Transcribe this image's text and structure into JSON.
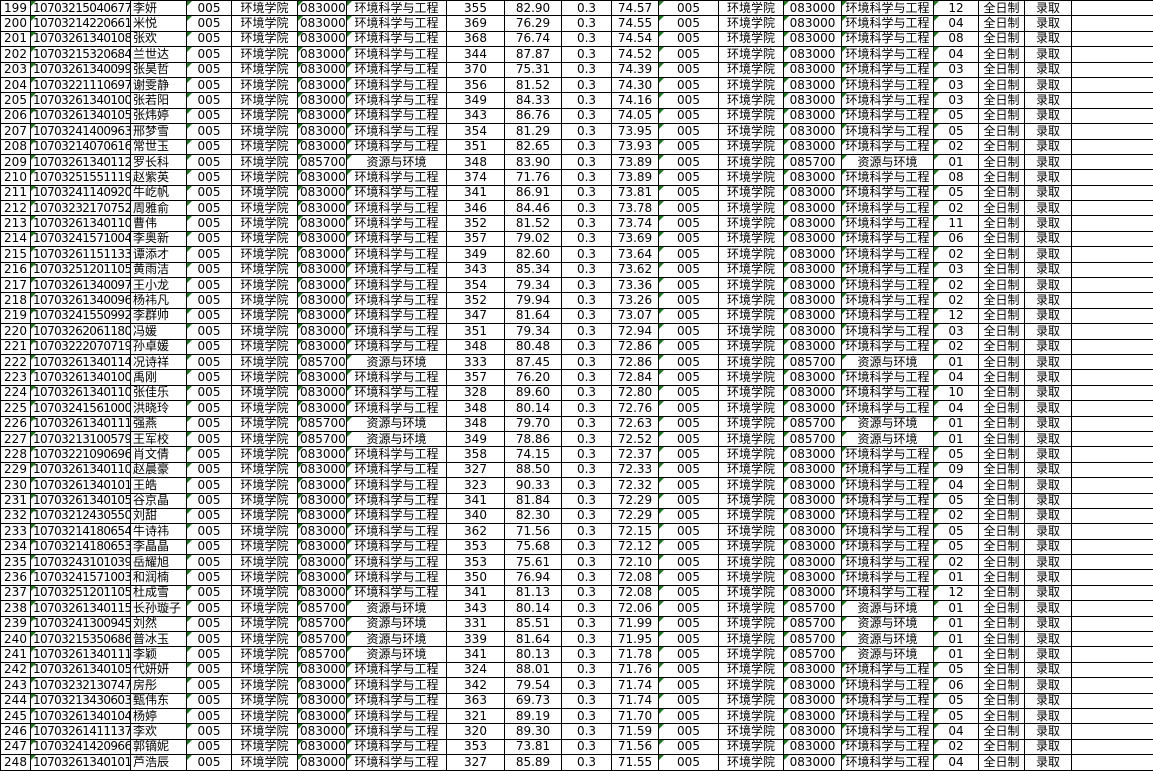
{
  "table": {
    "constants": {
      "unit_code": "005",
      "college": "环境学院",
      "weight": "0.3",
      "study_type": "全日制",
      "status": "录取"
    },
    "majors": {
      "083000": "环境科学与工程",
      "085700": "资源与环境"
    },
    "colors": {
      "grid": "#000000",
      "triangle_indicator": "#1f7a1f",
      "background": "#ffffff",
      "text": "#000000"
    },
    "row_fields": [
      "row_number",
      "candidate_id",
      "name",
      "major_code",
      "initial_score",
      "retest_score",
      "weighted_total",
      "direction_code"
    ],
    "rows": [
      [
        "199",
        "107032150406779",
        "李妍",
        "083000",
        "355",
        "82.90",
        "74.57",
        "12"
      ],
      [
        "200",
        "107032142206611",
        "米悦",
        "083000",
        "369",
        "76.29",
        "74.55",
        "04"
      ],
      [
        "201",
        "107032613401082",
        "张欢",
        "083000",
        "368",
        "76.74",
        "74.54",
        "08"
      ],
      [
        "202",
        "107032153206843",
        "兰世达",
        "083000",
        "344",
        "87.87",
        "74.52",
        "04"
      ],
      [
        "203",
        "107032613400993",
        "张昊哲",
        "083000",
        "370",
        "75.31",
        "74.39",
        "03"
      ],
      [
        "204",
        "107032211106977",
        "谢雯静",
        "083000",
        "356",
        "81.52",
        "74.30",
        "03"
      ],
      [
        "205",
        "107032613401000",
        "张若阳",
        "083000",
        "349",
        "84.33",
        "74.16",
        "03"
      ],
      [
        "206",
        "107032613401052",
        "张炜婷",
        "083000",
        "343",
        "86.76",
        "74.05",
        "05"
      ],
      [
        "207",
        "107032414009638",
        "邢梦雪",
        "083000",
        "354",
        "81.29",
        "73.95",
        "05"
      ],
      [
        "208",
        "107032140706162",
        "常世玉",
        "083000",
        "351",
        "82.65",
        "73.93",
        "02"
      ],
      [
        "209",
        "107032613401123",
        "罗长科",
        "085700",
        "348",
        "83.90",
        "73.89",
        "01"
      ],
      [
        "210",
        "107032515511196",
        "赵紫英",
        "083000",
        "374",
        "71.76",
        "73.89",
        "08"
      ],
      [
        "211",
        "107032411409207",
        "牛屹帆",
        "083000",
        "341",
        "86.91",
        "73.81",
        "05"
      ],
      [
        "212",
        "107032321707529",
        "周雅俞",
        "083000",
        "346",
        "84.46",
        "73.78",
        "02"
      ],
      [
        "213",
        "107032613401105",
        "曹伟",
        "083000",
        "352",
        "81.52",
        "73.74",
        "11"
      ],
      [
        "214",
        "107032415710046",
        "李奥新",
        "083000",
        "357",
        "79.02",
        "73.69",
        "06"
      ],
      [
        "215",
        "107032611511337",
        "谭添才",
        "083000",
        "349",
        "82.60",
        "73.64",
        "02"
      ],
      [
        "216",
        "107032512011056",
        "黄雨洁",
        "083000",
        "343",
        "85.34",
        "73.62",
        "03"
      ],
      [
        "217",
        "107032613400970",
        "王小龙",
        "083000",
        "354",
        "79.34",
        "73.36",
        "02"
      ],
      [
        "218",
        "107032613400963",
        "杨祎凡",
        "083000",
        "352",
        "79.94",
        "73.26",
        "02"
      ],
      [
        "219",
        "107032415509925",
        "李群帅",
        "083000",
        "347",
        "81.64",
        "73.07",
        "12"
      ],
      [
        "220",
        "107032620611805",
        "冯媛",
        "083000",
        "351",
        "79.34",
        "72.94",
        "03"
      ],
      [
        "221",
        "107032220707190",
        "孙卓媛",
        "083000",
        "348",
        "80.48",
        "72.86",
        "02"
      ],
      [
        "222",
        "107032613401142",
        "况诗祥",
        "085700",
        "333",
        "87.45",
        "72.86",
        "01"
      ],
      [
        "223",
        "107032613401005",
        "禹刚",
        "083000",
        "357",
        "76.20",
        "72.84",
        "04"
      ],
      [
        "224",
        "107032613401103",
        "张佳乐",
        "083000",
        "328",
        "89.60",
        "72.80",
        "10"
      ],
      [
        "225",
        "107032415610004",
        "洪晓玲",
        "083000",
        "348",
        "80.14",
        "72.76",
        "04"
      ],
      [
        "226",
        "107032613401117",
        "强燕",
        "085700",
        "348",
        "79.70",
        "72.63",
        "01"
      ],
      [
        "227",
        "107032131005794",
        "王军校",
        "085700",
        "349",
        "78.86",
        "72.52",
        "01"
      ],
      [
        "228",
        "107032210906964",
        "肖文倩",
        "083000",
        "358",
        "74.15",
        "72.37",
        "05"
      ],
      [
        "229",
        "107032613401101",
        "赵晨豪",
        "083000",
        "327",
        "88.50",
        "72.33",
        "09"
      ],
      [
        "230",
        "107032613401019",
        "王皓",
        "083000",
        "323",
        "90.33",
        "72.32",
        "04"
      ],
      [
        "231",
        "107032613401057",
        "谷京晶",
        "083000",
        "341",
        "81.84",
        "72.29",
        "05"
      ],
      [
        "232",
        "107032124305500",
        "刘甜",
        "083000",
        "340",
        "82.30",
        "72.29",
        "02"
      ],
      [
        "233",
        "107032141806541",
        "牛诗祎",
        "083000",
        "362",
        "71.56",
        "72.15",
        "05"
      ],
      [
        "234",
        "107032141806539",
        "李晶晶",
        "083000",
        "353",
        "75.68",
        "72.12",
        "05"
      ],
      [
        "235",
        "107032431010395",
        "岳耀旭",
        "083000",
        "353",
        "75.61",
        "72.10",
        "02"
      ],
      [
        "236",
        "107032415710036",
        "和润楠",
        "083000",
        "350",
        "76.94",
        "72.08",
        "01"
      ],
      [
        "237",
        "107032512011059",
        "杜成雪",
        "083000",
        "341",
        "81.13",
        "72.08",
        "12"
      ],
      [
        "238",
        "107032613401153",
        "长孙璇子",
        "085700",
        "343",
        "80.14",
        "72.06",
        "01"
      ],
      [
        "239",
        "107032413009452",
        "刘然",
        "085700",
        "331",
        "85.51",
        "71.99",
        "01"
      ],
      [
        "240",
        "107032153506861",
        "普冰玉",
        "085700",
        "339",
        "81.64",
        "71.95",
        "01"
      ],
      [
        "241",
        "107032613401116",
        "李颖",
        "085700",
        "341",
        "80.13",
        "71.78",
        "01"
      ],
      [
        "242",
        "107032613401050",
        "代妍妍",
        "083000",
        "324",
        "88.01",
        "71.76",
        "05"
      ],
      [
        "243",
        "107032321307472",
        "房彤",
        "083000",
        "342",
        "79.54",
        "71.74",
        "06"
      ],
      [
        "244",
        "107032134306036",
        "甄伟东",
        "083000",
        "363",
        "69.73",
        "71.74",
        "05"
      ],
      [
        "245",
        "107032613401047",
        "杨婷",
        "083000",
        "321",
        "89.19",
        "71.70",
        "05"
      ],
      [
        "246",
        "107032614111376",
        "李欢",
        "083000",
        "320",
        "89.30",
        "71.59",
        "04"
      ],
      [
        "247",
        "107032414209665",
        "郭镝妮",
        "083000",
        "353",
        "73.81",
        "71.56",
        "02"
      ],
      [
        "248",
        "107032613401017",
        "芦浩辰",
        "083000",
        "327",
        "85.89",
        "71.55",
        "04"
      ]
    ]
  }
}
